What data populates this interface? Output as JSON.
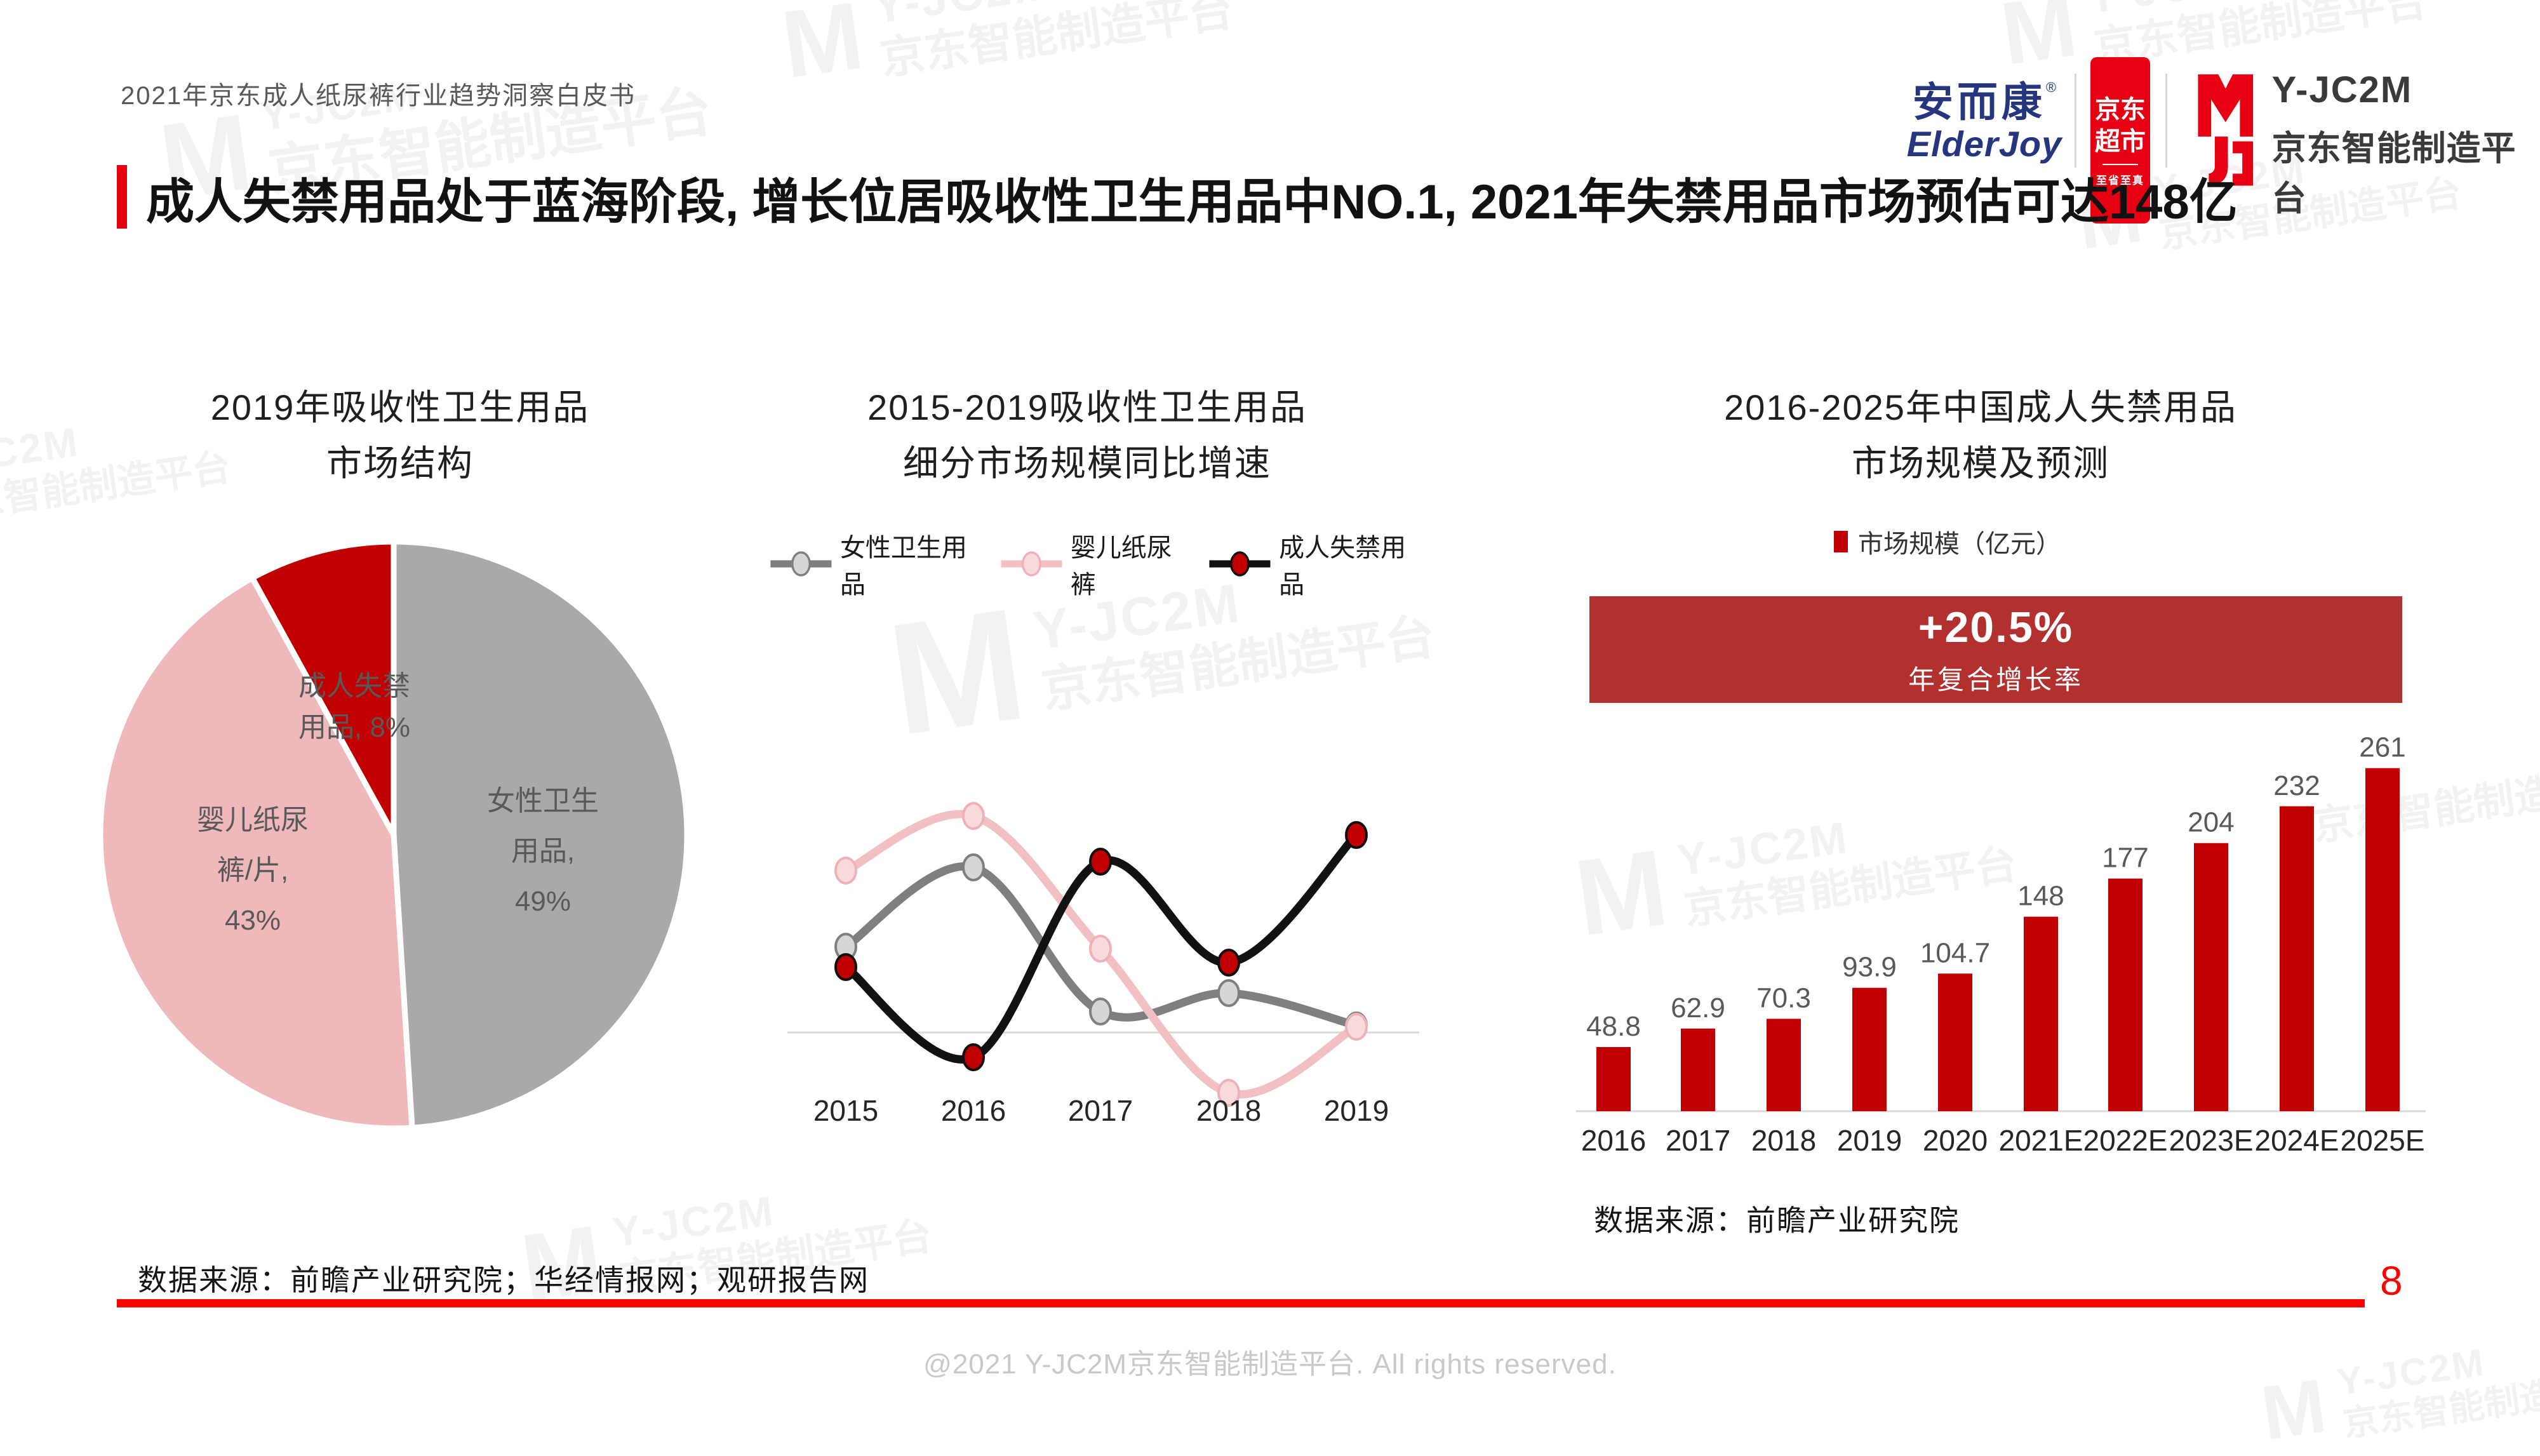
{
  "slide": {
    "header_title": "2021年京东成人纸尿裤行业趋势洞察白皮书",
    "main_title": "成人失禁用品处于蓝海阶段, 增长位居吸收性卫生用品中NO.1, 2021年失禁用品市场预估可达148亿",
    "footer_source": "数据来源：前瞻产业研究院；华经情报网；观研报告网",
    "copyright": "@2021 Y-JC2M京东智能制造平台. All rights reserved.",
    "page_number": "8"
  },
  "logos": {
    "elderjoy": {
      "cn": "安而康",
      "reg": "®",
      "en": "ElderJoy"
    },
    "jd_market": {
      "line1": "京东",
      "line2": "超市",
      "sub": "至省至真"
    },
    "yjc2m": {
      "name": "Y-JC2M",
      "sub": "京东智能制造平台"
    }
  },
  "watermark": {
    "line1": "Y-JC2M",
    "line2": "京东智能制造平台",
    "mark": "M"
  },
  "colors": {
    "accent_red": "#e60012",
    "bar_red": "#c00000",
    "banner_red": "#b2302e",
    "axis_gray": "#d9d9d9",
    "label_gray": "#595959",
    "tick_dark": "#262626"
  },
  "chart_data": [
    {
      "id": "structure-pie",
      "type": "pie",
      "title": "2019年吸收性卫生用品市场结构",
      "title_lines": [
        "2019年吸收性卫生用品",
        "市场结构"
      ],
      "start": "12-oclock",
      "direction": "clockwise",
      "slices": [
        {
          "name": "女性卫生用品",
          "pct": 49,
          "color": "#a9a9a9",
          "label_lines": [
            "女性卫生",
            "用品,",
            "49%"
          ]
        },
        {
          "name": "婴儿纸尿裤/片",
          "pct": 43,
          "color": "#efb9bc",
          "label_lines": [
            "婴儿纸尿",
            "裤/片,",
            "43%"
          ]
        },
        {
          "name": "成人失禁用品",
          "pct": 8,
          "color": "#c00000",
          "label_lines": [
            "成人失禁",
            "用品, 8%"
          ]
        }
      ]
    },
    {
      "id": "growth-line",
      "type": "line",
      "title": "2015-2019吸收性卫生用品细分市场规模同比增速",
      "title_lines": [
        "2015-2019吸收性卫生用品",
        "细分市场规模同比增速"
      ],
      "x": [
        "2015",
        "2016",
        "2017",
        "2018",
        "2019"
      ],
      "y_axis_note": "y-axis unlabeled in source; values are relative growth-rate offsets read from the plot (baseline = 0)",
      "grid": false,
      "legend_position": "top",
      "series": [
        {
          "name": "女性卫生用品",
          "line_color": "#7f7f7f",
          "marker_fill": "#d6d6d6",
          "marker_stroke": "#7f7f7f",
          "values": [
            135,
            260,
            33,
            62,
            11
          ]
        },
        {
          "name": "婴儿纸尿裤",
          "line_color": "#f2bfc3",
          "marker_fill": "#f8dadd",
          "marker_stroke": "#eeb2b6",
          "values": [
            255,
            341,
            132,
            -95,
            9
          ]
        },
        {
          "name": "成人失禁用品",
          "line_color": "#111111",
          "marker_fill": "#c00000",
          "marker_stroke": "#111111",
          "values": [
            103,
            -39,
            269,
            110,
            311
          ]
        }
      ]
    },
    {
      "id": "forecast-bar",
      "type": "bar",
      "title": "2016-2025年中国成人失禁用品市场规模及预测",
      "title_lines": [
        "2016-2025年中国成人失禁用品",
        "市场规模及预测"
      ],
      "legend": "市场规模（亿元）",
      "banner": {
        "headline": "+20.5%",
        "subline": "年复合增长率"
      },
      "categories": [
        "2016",
        "2017",
        "2018",
        "2019",
        "2020",
        "2021E",
        "2022E",
        "2023E",
        "2024E",
        "2025E"
      ],
      "values": [
        48.8,
        62.9,
        70.3,
        93.9,
        104.7,
        148,
        177,
        204,
        232,
        261
      ],
      "ylabel": "亿元",
      "source": "数据来源：前瞻产业研究院"
    }
  ]
}
